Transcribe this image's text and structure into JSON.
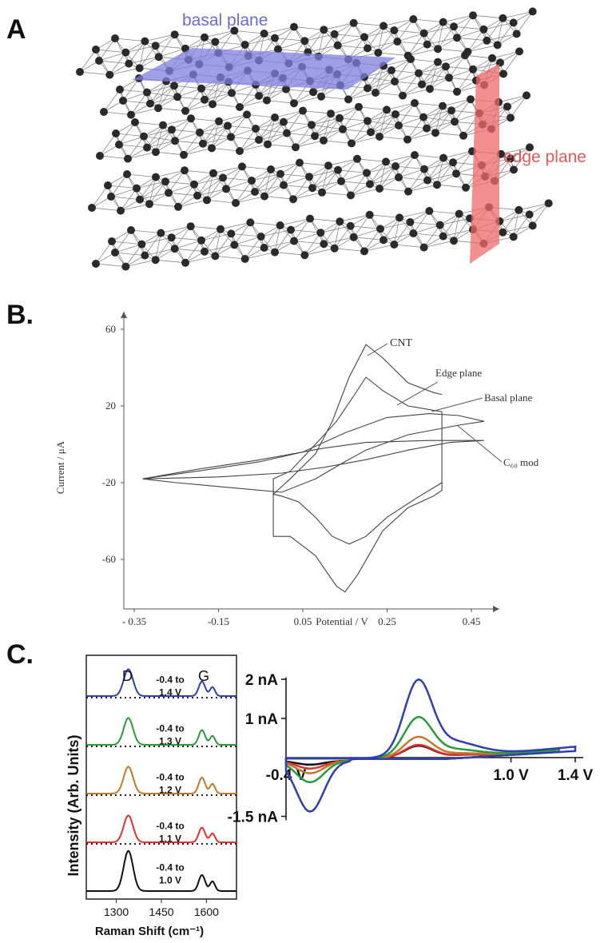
{
  "panels": {
    "a": {
      "letter": "A",
      "basal_label": "basal plane",
      "edge_label": "edge plane"
    },
    "b": {
      "letter": "B."
    },
    "c": {
      "letter": "C."
    }
  },
  "colors": {
    "basal": "#7f7fe0",
    "edge": "#ef6a6a",
    "atom": "#2a2a2a",
    "axis": "#555555"
  },
  "chart_data": [
    {
      "type": "line",
      "panel": "B",
      "xlabel": "Potential / V",
      "ylabel": "Current / μA",
      "xlim": [
        -0.35,
        0.55
      ],
      "ylim": [
        -80,
        65
      ],
      "x_ticks": [
        "- 0.35",
        "-0.15",
        "0.05",
        "0.25",
        "0.45"
      ],
      "x_tick_values": [
        -0.35,
        -0.15,
        0.05,
        0.25,
        0.45
      ],
      "y_ticks": [
        "60",
        "20",
        "-20",
        "-60"
      ],
      "y_tick_values": [
        60,
        20,
        -20,
        -60
      ],
      "annotations": [
        "CNT",
        "Edge plane",
        "Basal plane",
        "C₆₀ mod"
      ],
      "series": [
        {
          "name": "CNT",
          "points": [
            [
              0.38,
              -20
            ],
            [
              0.32,
              -28
            ],
            [
              0.25,
              -38
            ],
            [
              0.2,
              -48
            ],
            [
              0.16,
              -52
            ],
            [
              0.12,
              -48
            ],
            [
              0.08,
              -38
            ],
            [
              0.04,
              -30
            ],
            [
              0.0,
              -27
            ],
            [
              -0.02,
              -26
            ],
            [
              0.02,
              -18
            ],
            [
              0.08,
              -5
            ],
            [
              0.12,
              12
            ],
            [
              0.16,
              35
            ],
            [
              0.2,
              52
            ],
            [
              0.24,
              45
            ],
            [
              0.3,
              32
            ],
            [
              0.36,
              27
            ],
            [
              0.38,
              26
            ]
          ]
        },
        {
          "name": "Edge plane",
          "points": [
            [
              0.38,
              17
            ],
            [
              0.3,
              20
            ],
            [
              0.24,
              28
            ],
            [
              0.2,
              35
            ],
            [
              0.17,
              25
            ],
            [
              0.13,
              12
            ],
            [
              0.08,
              0
            ],
            [
              0.02,
              -14
            ],
            [
              -0.02,
              -18
            ],
            [
              -0.02,
              -48
            ],
            [
              0.02,
              -48
            ],
            [
              0.08,
              -58
            ],
            [
              0.13,
              -74
            ],
            [
              0.15,
              -77
            ],
            [
              0.18,
              -68
            ],
            [
              0.24,
              -45
            ],
            [
              0.3,
              -33
            ],
            [
              0.36,
              -27
            ],
            [
              0.38,
              -24
            ],
            [
              0.38,
              17
            ]
          ]
        },
        {
          "name": "Basal plane",
          "points": [
            [
              -0.33,
              -18
            ],
            [
              -0.2,
              -14
            ],
            [
              -0.05,
              -9
            ],
            [
              0.05,
              -4
            ],
            [
              0.15,
              6
            ],
            [
              0.25,
              14
            ],
            [
              0.35,
              16
            ],
            [
              0.42,
              15
            ],
            [
              0.48,
              12
            ],
            [
              0.42,
              10
            ],
            [
              0.3,
              5
            ],
            [
              0.2,
              -3
            ],
            [
              0.15,
              -9
            ],
            [
              0.08,
              -18
            ],
            [
              0.0,
              -25
            ],
            [
              -0.1,
              -23
            ],
            [
              -0.25,
              -20
            ],
            [
              -0.33,
              -18
            ]
          ]
        },
        {
          "name": "C₆₀ mod",
          "points": [
            [
              -0.33,
              -18
            ],
            [
              -0.2,
              -13
            ],
            [
              -0.05,
              -8
            ],
            [
              0.1,
              -2
            ],
            [
              0.2,
              1
            ],
            [
              0.35,
              2
            ],
            [
              0.48,
              2
            ],
            [
              0.4,
              1
            ],
            [
              0.3,
              -3
            ],
            [
              0.2,
              -8
            ],
            [
              0.1,
              -12
            ],
            [
              0.0,
              -15
            ],
            [
              -0.15,
              -17
            ],
            [
              -0.33,
              -18
            ]
          ]
        }
      ]
    },
    {
      "type": "line",
      "panel": "C-left",
      "xlabel": "Raman Shift (cm⁻¹)",
      "ylabel": "Intensity (Arb. Units)",
      "xlim": [
        1200,
        1700
      ],
      "x_ticks": [
        "1300",
        "1450",
        "1600"
      ],
      "x_tick_values": [
        1300,
        1450,
        1600
      ],
      "peak_labels": [
        "D",
        "G"
      ],
      "series": [
        {
          "name": "-0.4 to 1.4 V",
          "color": "#2f3fb0",
          "d_peak": 1.0,
          "g_peak": 0.55
        },
        {
          "name": "-0.4 to 1.3 V",
          "color": "#2a9a3a",
          "d_peak": 1.0,
          "g_peak": 0.55
        },
        {
          "name": "-0.4 to 1.2 V",
          "color": "#c07a2a",
          "d_peak": 1.0,
          "g_peak": 0.6
        },
        {
          "name": "-0.4 to 1.1 V",
          "color": "#e03030",
          "d_peak": 1.0,
          "g_peak": 0.55
        },
        {
          "name": "-0.4 to 1.0 V",
          "color": "#111111",
          "d_peak": 1.0,
          "g_peak": 0.4
        }
      ]
    },
    {
      "type": "line",
      "panel": "C-right",
      "xlim": [
        -0.4,
        1.45
      ],
      "ylim": [
        -1.5,
        2.0
      ],
      "x_ticks": [
        "-0.4 V",
        "1.0 V",
        "1.4 V"
      ],
      "x_tick_values": [
        -0.4,
        1.0,
        1.4
      ],
      "y_ticks": [
        "2 nA",
        "1 nA",
        "-1.5 nA"
      ],
      "y_tick_values": [
        2,
        1,
        -1.5
      ],
      "series": [
        {
          "name": "1.4 V",
          "color": "#2f3fb0",
          "ox_peak": 1.75,
          "red_peak": -1.3,
          "end": 1.4
        },
        {
          "name": "1.3 V",
          "color": "#2a9a3a",
          "ox_peak": 0.92,
          "red_peak": -0.55,
          "end": 1.3
        },
        {
          "name": "1.2 V",
          "color": "#c07a2a",
          "ox_peak": 0.48,
          "red_peak": -0.32,
          "end": 1.2
        },
        {
          "name": "1.1 V",
          "color": "#e03030",
          "ox_peak": 0.3,
          "red_peak": -0.2,
          "end": 1.1
        },
        {
          "name": "1.0 V",
          "color": "#111111",
          "ox_peak": 0.28,
          "red_peak": -0.1,
          "end": 1.0
        }
      ]
    }
  ]
}
